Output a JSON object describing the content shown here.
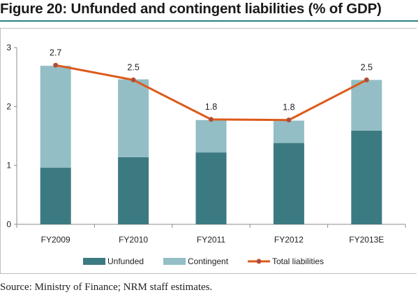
{
  "figure_title": "Figure 20: Unfunded and contingent liabilities (% of GDP)",
  "source_note": "Source: Ministry of Finance; NRM staff estimates.",
  "colors": {
    "unfunded": "#3c7a81",
    "contingent": "#93bec6",
    "total": "#dd5a1a",
    "total_marker": "#9c5050",
    "title_rule": "#2e7f86"
  },
  "chart_data": {
    "type": "bar",
    "stacked": true,
    "categories": [
      "FY2009",
      "FY2010",
      "FY2011",
      "FY2012",
      "FY2013E"
    ],
    "series": [
      {
        "name": "Unfunded",
        "type": "bar",
        "values": [
          0.96,
          1.14,
          1.22,
          1.38,
          1.59
        ]
      },
      {
        "name": "Contingent",
        "type": "bar",
        "values": [
          1.73,
          1.32,
          0.55,
          0.38,
          0.86
        ]
      },
      {
        "name": "Total liabilities",
        "type": "line",
        "values": [
          2.7,
          2.45,
          1.78,
          1.77,
          2.45
        ]
      }
    ],
    "data_labels": [
      "2.7",
      "2.5",
      "1.8",
      "1.8",
      "2.5"
    ],
    "yticks": [
      "0",
      "1",
      "2",
      "3"
    ],
    "ylim": [
      0,
      3
    ],
    "grid": false,
    "legend_position": "bottom"
  }
}
